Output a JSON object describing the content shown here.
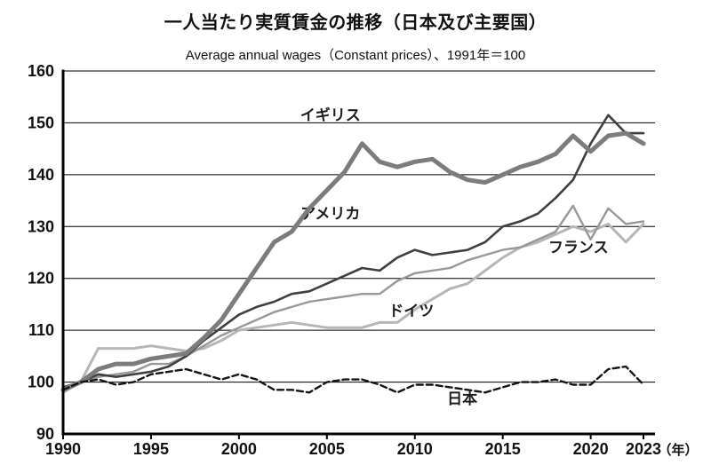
{
  "header": {
    "title": "一人当たり実質賃金の推移（日本及び主要国）",
    "subtitle": "Average annual wages（Constant prices）、1991年＝100"
  },
  "chart_data": {
    "type": "line",
    "title": "一人当たり実質賃金の推移（日本及び主要国）",
    "subtitle": "Average annual wages（Constant prices）、1991年＝100",
    "x_unit_label": "（年）",
    "x_range": [
      1990,
      2023
    ],
    "x_ticks": [
      1990,
      1995,
      2000,
      2005,
      2010,
      2015,
      2020,
      2023
    ],
    "ylim": [
      90,
      160
    ],
    "y_ticks": [
      90,
      100,
      110,
      120,
      130,
      140,
      150,
      160
    ],
    "grid": true,
    "legend_position": "inline-labels",
    "years": [
      1990,
      1991,
      1992,
      1993,
      1994,
      1995,
      1996,
      1997,
      1998,
      1999,
      2000,
      2001,
      2002,
      2003,
      2004,
      2005,
      2006,
      2007,
      2008,
      2009,
      2010,
      2011,
      2012,
      2013,
      2014,
      2015,
      2016,
      2017,
      2018,
      2019,
      2020,
      2021,
      2022,
      2023
    ],
    "series": [
      {
        "id": "germany",
        "name": "ドイツ",
        "color": "#b6b6b6",
        "stroke_width": 3,
        "dash": null,
        "label_x": 2009.8,
        "label_y": 112.8,
        "values": [
          98,
          100,
          106.5,
          106.5,
          106.5,
          107,
          106.5,
          106,
          106.5,
          108,
          110,
          110.5,
          111,
          111.5,
          111,
          110.5,
          110.5,
          110.5,
          111.5,
          111.5,
          114,
          116,
          118,
          119,
          121.5,
          124,
          126,
          127,
          128.5,
          130,
          129,
          130.5,
          127,
          130.5
        ]
      },
      {
        "id": "france",
        "name": "フランス",
        "color": "#989898",
        "stroke_width": 2.4,
        "dash": null,
        "label_x": 2019.3,
        "label_y": 125,
        "values": [
          99,
          100,
          101,
          101.5,
          102,
          103.5,
          103.5,
          105,
          107,
          109,
          110.5,
          112,
          113.5,
          114.5,
          115.5,
          116,
          116.5,
          117,
          117,
          119.5,
          121,
          121.5,
          122,
          123.5,
          124.5,
          125.5,
          126,
          127.5,
          129,
          134,
          127.5,
          133.5,
          130.5,
          131
        ]
      },
      {
        "id": "usa",
        "name": "アメリカ",
        "color": "#3f3f3f",
        "stroke_width": 2.6,
        "dash": null,
        "label_x": 2005.2,
        "label_y": 131.5,
        "values": [
          99,
          100,
          101.5,
          101,
          101.5,
          102,
          103,
          105,
          108,
          110.5,
          113,
          114.5,
          115.5,
          117,
          117.5,
          119,
          120.5,
          122,
          121.5,
          124,
          125.5,
          124.5,
          125,
          125.5,
          127,
          130,
          131,
          132.5,
          135.5,
          139,
          146,
          151.5,
          148,
          148
        ]
      },
      {
        "id": "uk",
        "name": "イギリス",
        "color": "#7c7c7c",
        "stroke_width": 5,
        "dash": null,
        "label_x": 2005.2,
        "label_y": 150.5,
        "values": [
          98.5,
          100,
          102.5,
          103.5,
          103.5,
          104.5,
          105,
          105.5,
          108.5,
          112,
          117,
          122,
          127,
          129,
          133.5,
          137,
          140.5,
          146,
          142.5,
          141.5,
          142.5,
          143,
          140.5,
          139,
          138.5,
          140,
          141.5,
          142.5,
          144,
          147.5,
          144.5,
          147.5,
          148,
          146
        ]
      },
      {
        "id": "japan",
        "name": "日本",
        "color": "#141414",
        "stroke_width": 2.4,
        "dash": "7,4",
        "label_x": 2012.7,
        "label_y": 95.8,
        "values": [
          98.5,
          100,
          100.5,
          99.5,
          100,
          101.5,
          102,
          102.5,
          101.5,
          100.5,
          101.5,
          100.5,
          98.5,
          98.5,
          98,
          100,
          100.5,
          100.5,
          99.5,
          98,
          99.5,
          99.5,
          99,
          98.5,
          98,
          99,
          100,
          100,
          100.5,
          99.5,
          99.5,
          102.5,
          103,
          99.5
        ]
      }
    ]
  }
}
